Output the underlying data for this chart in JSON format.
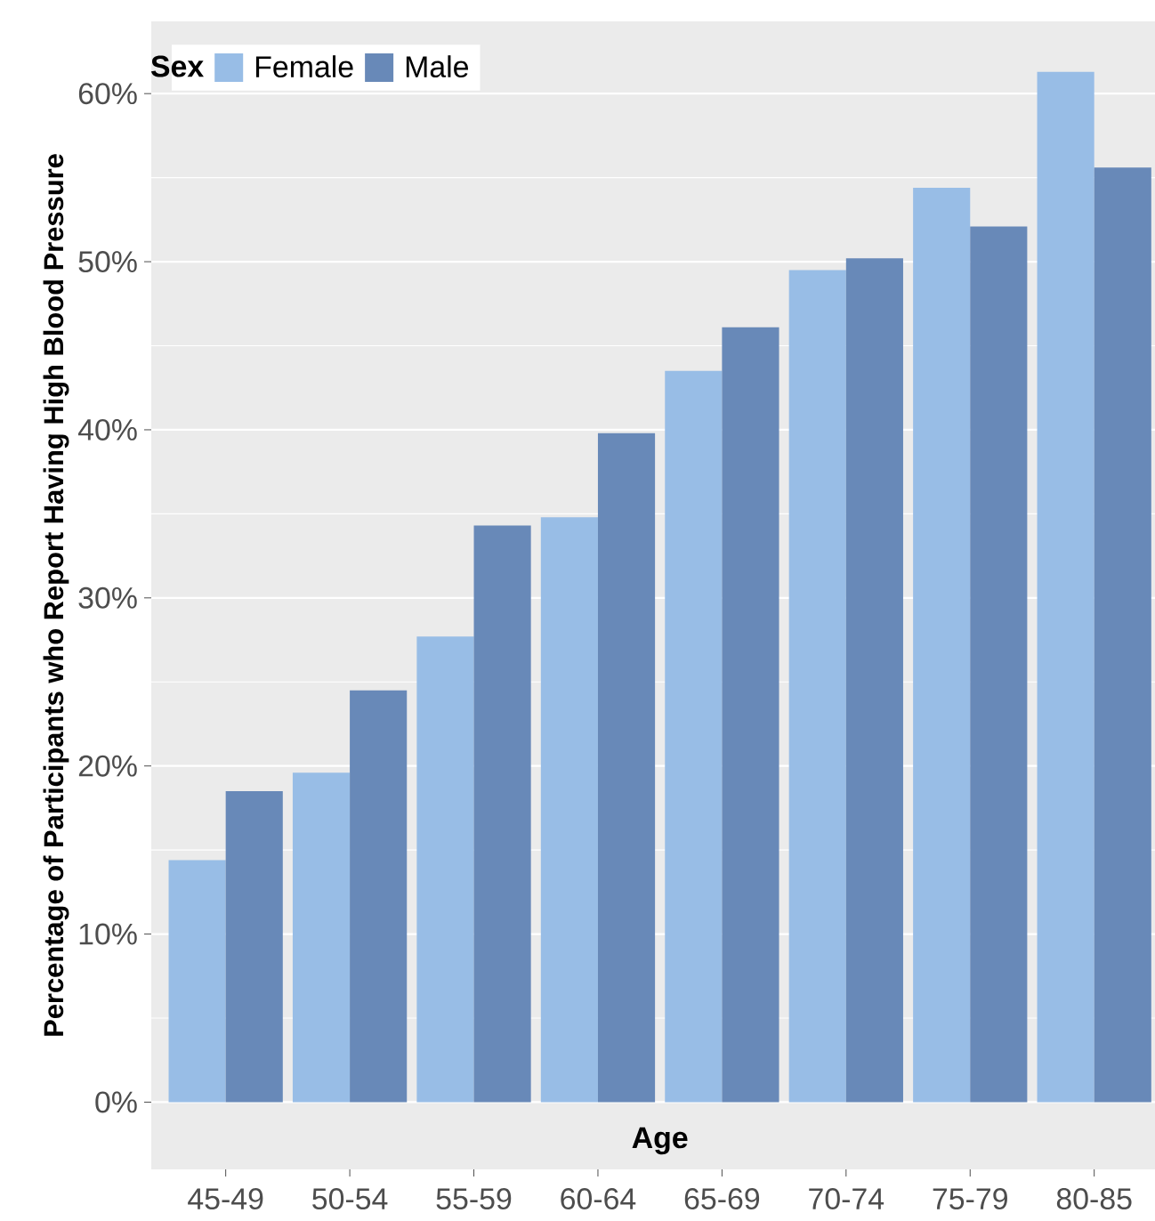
{
  "chart_data": {
    "type": "bar",
    "xlabel": "Age",
    "ylabel": "Percentage of Participants who Report Having High Blood Pressure",
    "legend_title": "Sex",
    "legend": "top left",
    "grid": "y",
    "categories": [
      "45-49",
      "50-54",
      "55-59",
      "60-64",
      "65-69",
      "70-74",
      "75-79",
      "80-85"
    ],
    "series": [
      {
        "name": "Female",
        "color": "#98bde6",
        "values": [
          14.4,
          19.6,
          27.7,
          34.8,
          43.5,
          49.5,
          54.4,
          61.3
        ]
      },
      {
        "name": "Male",
        "color": "#6889b8",
        "values": [
          18.5,
          24.5,
          34.3,
          39.8,
          46.1,
          50.2,
          52.1,
          55.6
        ]
      }
    ],
    "ylim": [
      -4,
      64.3
    ],
    "yticks": [
      {
        "value": 0,
        "label": "0%"
      },
      {
        "value": 10,
        "label": "10%"
      },
      {
        "value": 20,
        "label": "20%"
      },
      {
        "value": 30,
        "label": "30%"
      },
      {
        "value": 40,
        "label": "40%"
      },
      {
        "value": 50,
        "label": "50%"
      },
      {
        "value": 60,
        "label": "60%"
      }
    ]
  }
}
